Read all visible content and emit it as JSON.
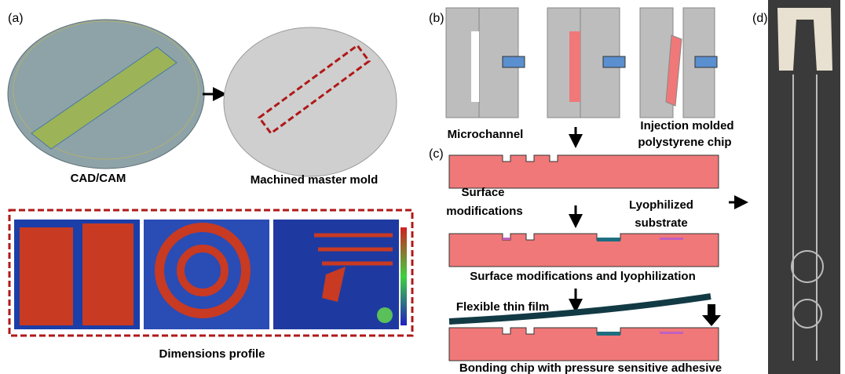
{
  "panels": {
    "a": {
      "label": "(a)",
      "cad_caption": "CAD/CAM",
      "mold_caption": "Machined master mold",
      "profile_caption": "Dimensions profile"
    },
    "b": {
      "label": "(b)"
    },
    "c": {
      "label": "(c)",
      "microchannel": "Microchannel",
      "injection": [
        "Injection molded",
        "polystyrene chip"
      ],
      "surface": [
        "Surface",
        "modifications"
      ],
      "lyophilized": [
        "Lyophilized",
        "substrate"
      ],
      "step2_caption": "Surface modifications and lyophilization",
      "film": "Flexible thin film",
      "step3_caption": "Bonding chip with pressure sensitive adhesive"
    },
    "d": {
      "label": "(d)"
    }
  }
}
